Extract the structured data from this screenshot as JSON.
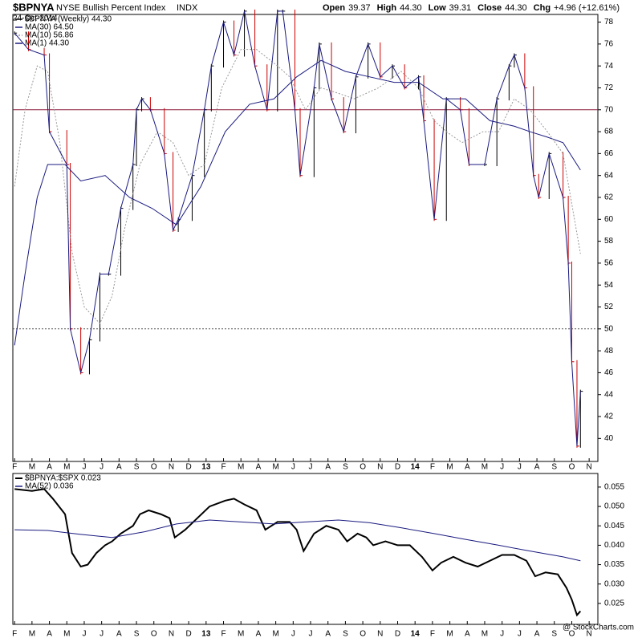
{
  "header": {
    "symbol": "$BPNYA",
    "name": "NYSE Bullish Percent Index",
    "exchange": "INDX",
    "date": "24-Oct-2014",
    "quote": [
      {
        "label": "Open",
        "value": "39.37"
      },
      {
        "label": "High",
        "value": "44.30"
      },
      {
        "label": "Low",
        "value": "39.31"
      },
      {
        "label": "Close",
        "value": "44.30"
      },
      {
        "label": "Chg",
        "value": "+4.96 (+12.61%)"
      }
    ],
    "credit": "@ StockCharts.com"
  },
  "chart_data": [
    {
      "type": "line",
      "xlim": [
        -0.1,
        33.5
      ],
      "ylim": [
        37.9,
        78.7
      ],
      "yticks": [
        40,
        42,
        44,
        46,
        48,
        50,
        52,
        54,
        56,
        58,
        60,
        62,
        64,
        66,
        68,
        70,
        72,
        74,
        76,
        78
      ],
      "xticks": [
        {
          "value": 0,
          "label": "F"
        },
        {
          "value": 1,
          "label": "M"
        },
        {
          "value": 2,
          "label": "A"
        },
        {
          "value": 3,
          "label": "M"
        },
        {
          "value": 4,
          "label": "J"
        },
        {
          "value": 5,
          "label": "J"
        },
        {
          "value": 6,
          "label": "A"
        },
        {
          "value": 7,
          "label": "S"
        },
        {
          "value": 8,
          "label": "O"
        },
        {
          "value": 9,
          "label": "N"
        },
        {
          "value": 10,
          "label": "D"
        },
        {
          "value": 11,
          "label": "13"
        },
        {
          "value": 12,
          "label": "F"
        },
        {
          "value": 13,
          "label": "M"
        },
        {
          "value": 14,
          "label": "A"
        },
        {
          "value": 15,
          "label": "M"
        },
        {
          "value": 16,
          "label": "J"
        },
        {
          "value": 17,
          "label": "J"
        },
        {
          "value": 18,
          "label": "A"
        },
        {
          "value": 19,
          "label": "S"
        },
        {
          "value": 20,
          "label": "O"
        },
        {
          "value": 21,
          "label": "N"
        },
        {
          "value": 22,
          "label": "D"
        },
        {
          "value": 23,
          "label": "14"
        },
        {
          "value": 24,
          "label": "F"
        },
        {
          "value": 25,
          "label": "M"
        },
        {
          "value": 26,
          "label": "A"
        },
        {
          "value": 27,
          "label": "M"
        },
        {
          "value": 28,
          "label": "J"
        },
        {
          "value": 29,
          "label": "J"
        },
        {
          "value": 30,
          "label": "A"
        },
        {
          "value": 31,
          "label": "S"
        },
        {
          "value": 32,
          "label": "O"
        },
        {
          "value": 33,
          "label": "N"
        }
      ],
      "reference_lines": [
        {
          "value": 70,
          "color": "#8b1a3a",
          "style": "solid"
        },
        {
          "value": 50,
          "color": "#555555",
          "style": "dotted"
        }
      ],
      "series": [
        {
          "name": "$BPNYA (Weekly) 44.30",
          "style": "bars",
          "color": "#000000",
          "down_color": "#cc0000",
          "x": [
            0,
            0.8,
            1.7,
            2.0,
            3.0,
            3.2,
            3.8,
            4.3,
            4.9,
            5.4,
            6.1,
            6.8,
            7.0,
            7.3,
            7.8,
            8.6,
            9.1,
            9.4,
            10.2,
            10.9,
            11.3,
            12.0,
            12.6,
            13.2,
            13.8,
            14.5,
            15.1,
            15.4,
            16.1,
            16.4,
            17.2,
            17.5,
            18.2,
            18.9,
            19.6,
            20.3,
            21.0,
            21.7,
            22.4,
            23.2,
            23.5,
            24.1,
            24.8,
            25.6,
            26.1,
            27.0,
            27.7,
            28.4,
            28.7,
            29.3,
            29.8,
            30.1,
            30.7,
            31.5,
            31.8,
            32.0,
            32.3,
            32.5
          ],
          "values": [
            77,
            75.5,
            75,
            68,
            65,
            50,
            46,
            49,
            55,
            55,
            61,
            65,
            70,
            71,
            70,
            66,
            59,
            60,
            64,
            70,
            74,
            78,
            75,
            79,
            74,
            70,
            79,
            79,
            70,
            64,
            72,
            76,
            71,
            68,
            73,
            76,
            73,
            74,
            72,
            73,
            69,
            60,
            71,
            70,
            65,
            65,
            71,
            74,
            75,
            72,
            64,
            62,
            66,
            62,
            56,
            47,
            39.3,
            44.3
          ]
        },
        {
          "name": "MA(30) 64.50",
          "style": "solid",
          "color": "#1a1a80",
          "x": [
            0,
            0.6,
            1.3,
            1.9,
            2.9,
            3.8,
            5.2,
            6.6,
            7.9,
            9.3,
            10.7,
            12.1,
            13.5,
            14.9,
            16.2,
            17.6,
            19.0,
            20.4,
            21.8,
            23.2,
            24.6,
            25.9,
            27.3,
            28.7,
            29.6,
            30.6,
            31.5,
            32.5
          ],
          "values": [
            48.5,
            55,
            62,
            65,
            65,
            63.5,
            64,
            62,
            61,
            59.5,
            63,
            68,
            70.5,
            71,
            73,
            74.5,
            73.5,
            73,
            72.5,
            72.5,
            71,
            71,
            69,
            68.5,
            68,
            67.5,
            67,
            64.5
          ]
        },
        {
          "name": "MA(10) 56.86",
          "style": "dotted",
          "color": "#999999",
          "x": [
            0,
            0.6,
            1.3,
            1.9,
            2.6,
            3.3,
            4.0,
            4.9,
            5.6,
            6.3,
            7.2,
            8.2,
            9.1,
            10.0,
            10.9,
            11.9,
            13.0,
            13.9,
            15.1,
            15.8,
            16.7,
            17.6,
            18.6,
            19.5,
            20.9,
            22.2,
            23.2,
            24.1,
            24.8,
            25.7,
            26.9,
            27.8,
            28.7,
            29.6,
            30.6,
            31.5,
            32.5
          ],
          "values": [
            63,
            70,
            74,
            73.5,
            67,
            57,
            52,
            50.5,
            53,
            59,
            65,
            68,
            67,
            64,
            65,
            72,
            75.5,
            75.5,
            74,
            73,
            70,
            72,
            71.5,
            71,
            72,
            73.5,
            72,
            69,
            68,
            67,
            68,
            68,
            71,
            70,
            68,
            66,
            56.86
          ]
        },
        {
          "name": "MA(1) 44.30",
          "style": "solid",
          "color": "#1a1a80",
          "x": [
            0,
            0.8,
            1.7,
            2.0,
            3.0,
            3.2,
            3.8,
            4.3,
            4.9,
            5.4,
            6.1,
            6.8,
            7.0,
            7.3,
            7.8,
            8.6,
            9.1,
            9.4,
            10.2,
            10.9,
            11.3,
            12.0,
            12.6,
            13.2,
            13.8,
            14.5,
            15.1,
            15.4,
            16.1,
            16.4,
            17.2,
            17.5,
            18.2,
            18.9,
            19.6,
            20.3,
            21.0,
            21.7,
            22.4,
            23.2,
            23.5,
            24.1,
            24.8,
            25.6,
            26.1,
            27.0,
            27.7,
            28.4,
            28.7,
            29.3,
            29.8,
            30.1,
            30.7,
            31.5,
            31.8,
            32.0,
            32.3,
            32.5
          ],
          "values": [
            77,
            75.5,
            75,
            68,
            65,
            50,
            46,
            49,
            55,
            55,
            61,
            65,
            70,
            71,
            70,
            66,
            59,
            60,
            64,
            70,
            74,
            78,
            75,
            79,
            74,
            70,
            79,
            79,
            70,
            64,
            72,
            76,
            71,
            68,
            73,
            76,
            73,
            74,
            72,
            73,
            69,
            60,
            71,
            70,
            65,
            65,
            71,
            74,
            75,
            72,
            64,
            62,
            66,
            62,
            56,
            47,
            39.3,
            44.3
          ]
        }
      ]
    },
    {
      "type": "line",
      "xlim": [
        -0.1,
        33.5
      ],
      "ylim": [
        0.0196,
        0.0585
      ],
      "yticks": [
        0.025,
        {
          "value": 0.03,
          "label": "0.030"
        },
        0.035,
        {
          "value": 0.04,
          "label": "0.040"
        },
        0.045,
        {
          "value": 0.05,
          "label": "0.050"
        },
        0.055
      ],
      "xticks": [
        {
          "value": 0,
          "label": "F"
        },
        {
          "value": 1,
          "label": "M"
        },
        {
          "value": 2,
          "label": "A"
        },
        {
          "value": 3,
          "label": "M"
        },
        {
          "value": 4,
          "label": "J"
        },
        {
          "value": 5,
          "label": "J"
        },
        {
          "value": 6,
          "label": "A"
        },
        {
          "value": 7,
          "label": "S"
        },
        {
          "value": 8,
          "label": "O"
        },
        {
          "value": 9,
          "label": "N"
        },
        {
          "value": 10,
          "label": "D"
        },
        {
          "value": 11,
          "label": "13"
        },
        {
          "value": 12,
          "label": "F"
        },
        {
          "value": 13,
          "label": "M"
        },
        {
          "value": 14,
          "label": "A"
        },
        {
          "value": 15,
          "label": "M"
        },
        {
          "value": 16,
          "label": "J"
        },
        {
          "value": 17,
          "label": "J"
        },
        {
          "value": 18,
          "label": "A"
        },
        {
          "value": 19,
          "label": "S"
        },
        {
          "value": 20,
          "label": "O"
        },
        {
          "value": 21,
          "label": "N"
        },
        {
          "value": 22,
          "label": "D"
        },
        {
          "value": 23,
          "label": "14"
        },
        {
          "value": 24,
          "label": "F"
        },
        {
          "value": 25,
          "label": "M"
        },
        {
          "value": 26,
          "label": "A"
        },
        {
          "value": 27,
          "label": "M"
        },
        {
          "value": 28,
          "label": "J"
        },
        {
          "value": 29,
          "label": "J"
        },
        {
          "value": 30,
          "label": "A"
        },
        {
          "value": 31,
          "label": "S"
        },
        {
          "value": 32,
          "label": "O"
        },
        {
          "value": 33,
          "label": "N"
        }
      ],
      "series": [
        {
          "name": "$BPNYA:$SPX 0.023",
          "style": "thick",
          "color": "#000000",
          "x": [
            0,
            1.0,
            1.7,
            2.2,
            2.9,
            3.3,
            3.8,
            4.2,
            4.7,
            5.2,
            5.6,
            6.1,
            6.8,
            7.2,
            7.7,
            8.4,
            8.9,
            9.2,
            9.8,
            10.5,
            11.2,
            12.1,
            12.6,
            13.2,
            13.9,
            14.4,
            15.1,
            15.8,
            16.2,
            16.6,
            17.2,
            17.9,
            18.6,
            19.1,
            19.7,
            20.2,
            20.6,
            21.3,
            22.0,
            22.7,
            23.4,
            24.0,
            24.5,
            25.2,
            25.9,
            26.6,
            27.3,
            28.0,
            28.7,
            29.4,
            29.9,
            30.5,
            31.2,
            31.7,
            32.0,
            32.3,
            32.5
          ],
          "values": [
            0.0545,
            0.054,
            0.0545,
            0.052,
            0.048,
            0.038,
            0.0345,
            0.035,
            0.038,
            0.04,
            0.041,
            0.043,
            0.045,
            0.048,
            0.049,
            0.048,
            0.047,
            0.042,
            0.044,
            0.047,
            0.05,
            0.0515,
            0.052,
            0.0505,
            0.049,
            0.044,
            0.046,
            0.046,
            0.044,
            0.0385,
            0.043,
            0.045,
            0.044,
            0.041,
            0.043,
            0.042,
            0.04,
            0.041,
            0.04,
            0.04,
            0.037,
            0.0335,
            0.0355,
            0.037,
            0.0355,
            0.0345,
            0.036,
            0.0375,
            0.0375,
            0.036,
            0.032,
            0.033,
            0.0325,
            0.029,
            0.026,
            0.022,
            0.023
          ]
        },
        {
          "name": "MA(52) 0.036",
          "style": "solid",
          "color": "#1a1a80",
          "x": [
            0,
            1.9,
            3.8,
            5.6,
            7.5,
            9.3,
            11.2,
            13.0,
            14.9,
            16.7,
            18.6,
            20.4,
            22.2,
            24.1,
            25.9,
            27.8,
            29.6,
            31.5,
            32.5
          ],
          "values": [
            0.044,
            0.0438,
            0.0428,
            0.042,
            0.0435,
            0.0455,
            0.0465,
            0.046,
            0.0455,
            0.046,
            0.0465,
            0.0458,
            0.0445,
            0.043,
            0.0415,
            0.04,
            0.0385,
            0.037,
            0.036
          ]
        }
      ]
    }
  ]
}
